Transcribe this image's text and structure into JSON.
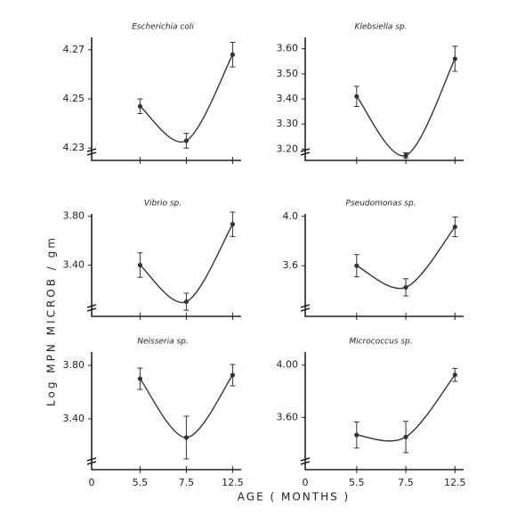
{
  "ylabel": "Log MPN MICROB / gm",
  "xlabel": "AGE ( MONTHS )",
  "chart_data": [
    {
      "type": "line",
      "title": "Escherichia coli",
      "categories": [
        null,
        null,
        null,
        null
      ],
      "series": [
        {
          "color": "#333333",
          "values": [
            null,
            4.247,
            4.233,
            4.268
          ],
          "errors": [
            null,
            0.003,
            0.003,
            0.005
          ]
        }
      ],
      "ylim": [
        4.225,
        4.275
      ],
      "yticks": [
        4.23,
        4.25,
        4.27
      ]
    },
    {
      "type": "line",
      "title": "Klebsiella sp.",
      "categories": [
        null,
        null,
        null,
        null
      ],
      "series": [
        {
          "color": "#333333",
          "values": [
            null,
            3.41,
            3.175,
            3.56
          ],
          "errors": [
            null,
            0.04,
            0.01,
            0.05
          ]
        }
      ],
      "ylim": [
        3.155,
        3.645
      ],
      "yticks": [
        {
          "value": 3.2,
          "label": "3.20"
        },
        {
          "value": 3.3,
          "label": "3.30"
        },
        {
          "value": 3.4,
          "label": "3.40"
        },
        {
          "value": 3.5,
          "label": "3.50"
        },
        {
          "value": 3.6,
          "label": "3.60"
        }
      ]
    },
    {
      "type": "line",
      "title": "Vibrio sp.",
      "categories": [
        null,
        null,
        null,
        null
      ],
      "series": [
        {
          "color": "#333333",
          "values": [
            null,
            3.4,
            3.1,
            3.735
          ],
          "errors": [
            null,
            0.1,
            0.07,
            0.1
          ]
        }
      ],
      "ylim": [
        2.98,
        3.82
      ],
      "yticks": [
        {
          "value": 3.4,
          "label": "3.40"
        },
        {
          "value": 3.8,
          "label": "3.80"
        }
      ]
    },
    {
      "type": "line",
      "title": "Pseudomonas sp.",
      "categories": [
        null,
        null,
        null,
        null
      ],
      "series": [
        {
          "color": "#333333",
          "values": [
            null,
            3.6,
            3.425,
            3.915
          ],
          "errors": [
            null,
            0.09,
            0.07,
            0.08
          ]
        }
      ],
      "ylim": [
        3.19,
        4.02
      ],
      "yticks": [
        3.6,
        {
          "value": 4,
          "label": "4.0"
        }
      ]
    },
    {
      "type": "line",
      "title": "Neisseria sp.",
      "categories": [
        "0",
        "5.5",
        "7.5",
        "12.5"
      ],
      "series": [
        {
          "color": "#333333",
          "values": [
            null,
            3.7,
            3.26,
            3.727
          ],
          "errors": [
            null,
            0.08,
            0.16,
            0.08
          ]
        }
      ],
      "ylim": [
        3.02,
        3.9
      ],
      "yticks": [
        {
          "value": 3.4,
          "label": "3.40"
        },
        {
          "value": 3.8,
          "label": "3.80"
        }
      ]
    },
    {
      "type": "line",
      "title": "Micrococcus sp.",
      "categories": [
        "0",
        "5.5",
        "7.5",
        "12.5"
      ],
      "series": [
        {
          "color": "#333333",
          "values": [
            null,
            3.465,
            3.45,
            3.925
          ],
          "errors": [
            null,
            0.1,
            0.12,
            0.05
          ]
        }
      ],
      "ylim": [
        3.2,
        4.1
      ],
      "yticks": [
        {
          "value": 3.6,
          "label": "3.60"
        },
        {
          "value": 4,
          "label": "4.00"
        }
      ]
    }
  ]
}
